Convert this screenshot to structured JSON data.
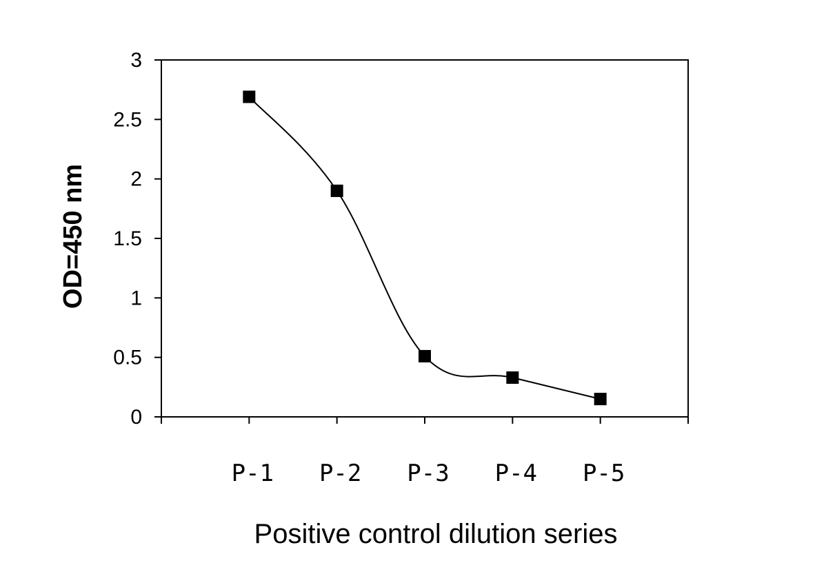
{
  "chart_data": {
    "type": "line",
    "title": "",
    "xlabel": "Positive control dilution series",
    "ylabel": "OD=450 nm",
    "categories": [
      "P-1",
      "P-2",
      "P-3",
      "P-4",
      "P-5"
    ],
    "series": [
      {
        "values": [
          2.69,
          1.9,
          0.51,
          0.33,
          0.15
        ],
        "marker": "square",
        "color": "#000000"
      }
    ],
    "yticks": [
      "0",
      "0.5",
      "1",
      "1.5",
      "2",
      "2.5",
      "3"
    ],
    "ylim": [
      0,
      3
    ],
    "grid": false,
    "legend": "none"
  }
}
